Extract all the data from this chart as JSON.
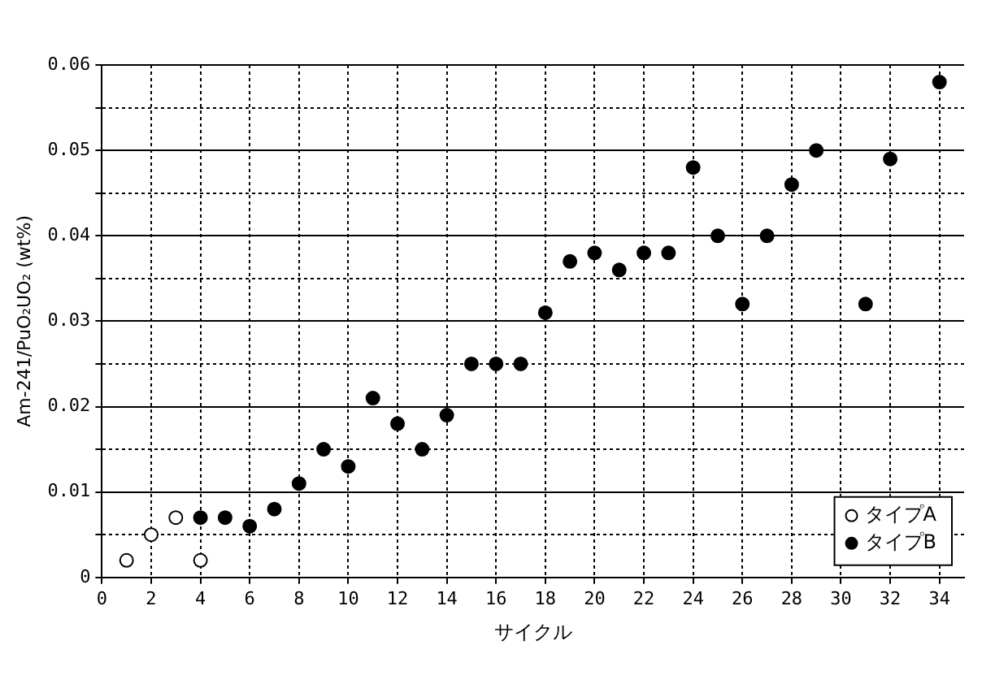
{
  "chart_data": {
    "type": "scatter",
    "xlabel": "サイクル",
    "ylabel": "Am-241/PuO₂UO₂ (wt%)",
    "xlim": [
      0,
      35
    ],
    "xticks": [
      0,
      2,
      4,
      6,
      8,
      10,
      12,
      14,
      16,
      18,
      20,
      22,
      24,
      26,
      28,
      30,
      32,
      34
    ],
    "ylim": [
      0,
      0.06
    ],
    "yticks": [
      0,
      {
        "value": 0.005,
        "label": null
      },
      0.01,
      {
        "value": 0.015,
        "label": null
      },
      0.02,
      {
        "value": 0.025,
        "label": null
      },
      0.03,
      {
        "value": 0.035,
        "label": null
      },
      0.04,
      {
        "value": 0.045,
        "label": null
      },
      0.05,
      {
        "value": 0.055,
        "label": null
      },
      0.06
    ],
    "grid": true,
    "legend": "bottom right",
    "marker": "circle",
    "series": [
      {
        "name": "タイプA",
        "color": "#000000",
        "x": [
          1,
          2,
          3,
          4
        ],
        "values": [
          0.002,
          0.005,
          0.007,
          0.002
        ]
      },
      {
        "name": "タイプB",
        "color": "#000000",
        "x": [
          4,
          5,
          6,
          7,
          8,
          9,
          10,
          11,
          12,
          13,
          14,
          15,
          16,
          17,
          18,
          19,
          20,
          21,
          22,
          23,
          24,
          25,
          26,
          27,
          28,
          29,
          31,
          32,
          34
        ],
        "values": [
          0.007,
          0.007,
          0.006,
          0.008,
          0.011,
          0.015,
          0.013,
          0.021,
          0.018,
          0.015,
          0.019,
          0.025,
          0.025,
          0.025,
          0.031,
          0.037,
          0.038,
          0.036,
          0.038,
          0.038,
          0.048,
          0.04,
          0.032,
          0.04,
          0.046,
          0.05,
          0.032,
          0.049,
          0.058
        ]
      }
    ]
  }
}
